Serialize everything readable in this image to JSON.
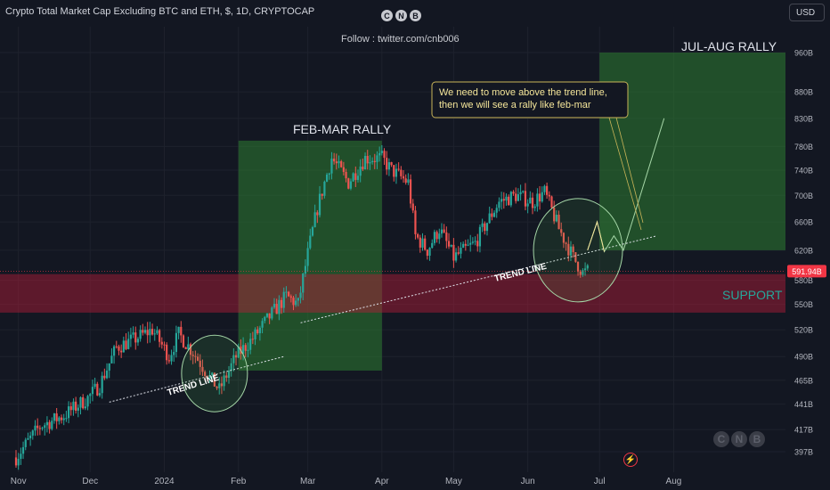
{
  "header": {
    "title": "Crypto Total Market Cap Excluding BTC and ETH, $, 1D, CRYPTOCAP",
    "logo_letters": [
      "C",
      "N",
      "B"
    ],
    "follow_text": "Follow : twitter.com/cnb006",
    "currency_button": "USD"
  },
  "watermark": {
    "letters": [
      "C",
      "N",
      "B"
    ]
  },
  "alert_icon": "lightning-icon",
  "colors": {
    "background": "#131722",
    "up": "#26a69a",
    "down": "#ef5350",
    "rally_zone": "#2e7d32",
    "support_zone": "#b71c3a",
    "price_tag": "#f23645",
    "callout_border": "#c9b458",
    "callout_text": "#f5e69a",
    "support_text": "#26a69a"
  },
  "chart_data": {
    "type": "candlestick",
    "title": "Crypto Total Market Cap Excluding BTC and ETH, $, 1D, CRYPTOCAP",
    "x_ticks": [
      "Nov",
      "Dec",
      "2024",
      "Feb",
      "Mar",
      "Apr",
      "May",
      "Jun",
      "Jul",
      "Aug"
    ],
    "y_ticks": [
      "397B",
      "417B",
      "441B",
      "465B",
      "490B",
      "520B",
      "550B",
      "580B",
      "620B",
      "660B",
      "700B",
      "740B",
      "780B",
      "830B",
      "880B",
      "960B"
    ],
    "y_scale": "log",
    "ylim": [
      385,
      1000
    ],
    "last_price": "591.94B",
    "series_path": [
      [
        "2023-10-31",
        392
      ],
      [
        "2023-11-10",
        420
      ],
      [
        "2023-11-20",
        430
      ],
      [
        "2023-11-30",
        447
      ],
      [
        "2023-12-05",
        460
      ],
      [
        "2023-12-12",
        500
      ],
      [
        "2023-12-20",
        510
      ],
      [
        "2023-12-27",
        520
      ],
      [
        "2024-01-03",
        490
      ],
      [
        "2024-01-07",
        515
      ],
      [
        "2024-01-13",
        495
      ],
      [
        "2024-01-20",
        468
      ],
      [
        "2024-01-24",
        455
      ],
      [
        "2024-01-31",
        490
      ],
      [
        "2024-02-07",
        510
      ],
      [
        "2024-02-14",
        535
      ],
      [
        "2024-02-21",
        560
      ],
      [
        "2024-02-26",
        550
      ],
      [
        "2024-03-05",
        680
      ],
      [
        "2024-03-11",
        760
      ],
      [
        "2024-03-18",
        720
      ],
      [
        "2024-03-25",
        760
      ],
      [
        "2024-04-01",
        760
      ],
      [
        "2024-04-05",
        740
      ],
      [
        "2024-04-12",
        720
      ],
      [
        "2024-04-15",
        640
      ],
      [
        "2024-04-20",
        620
      ],
      [
        "2024-04-25",
        650
      ],
      [
        "2024-05-01",
        610
      ],
      [
        "2024-05-10",
        630
      ],
      [
        "2024-05-20",
        690
      ],
      [
        "2024-05-27",
        700
      ],
      [
        "2024-06-03",
        690
      ],
      [
        "2024-06-08",
        705
      ],
      [
        "2024-06-14",
        650
      ],
      [
        "2024-06-20",
        610
      ],
      [
        "2024-06-24",
        590
      ],
      [
        "2024-06-26",
        592
      ]
    ],
    "annotations": {
      "rally_1_label": "FEB-MAR RALLY",
      "rally_2_label": "JUL-AUG RALLY",
      "support_label": "SUPPORT",
      "trend_line_label": "TREND LINE",
      "callout": [
        "We need to move above the trend line,",
        "then we will see a rally like feb-mar"
      ]
    },
    "zones": {
      "feb_mar_rally": {
        "x": [
          "2024-02-01",
          "2024-04-01"
        ],
        "y": [
          475,
          790
        ]
      },
      "jul_aug_rally": {
        "x": [
          "2024-07-01",
          "2024-08-31"
        ],
        "y": [
          620,
          960
        ]
      },
      "support": {
        "y": [
          540,
          588
        ]
      }
    },
    "trend_lines": [
      {
        "from": [
          "2023-12-09",
          443
        ],
        "to": [
          "2024-02-20",
          490
        ]
      },
      {
        "from": [
          "2024-02-27",
          528
        ],
        "to": [
          "2024-07-25",
          640
        ]
      }
    ],
    "projection": [
      [
        "2024-06-26",
        620
      ],
      [
        "2024-06-30",
        660
      ],
      [
        "2024-07-03",
        618
      ],
      [
        "2024-07-07",
        640
      ],
      [
        "2024-07-11",
        620
      ],
      [
        "2024-07-28",
        830
      ]
    ]
  }
}
